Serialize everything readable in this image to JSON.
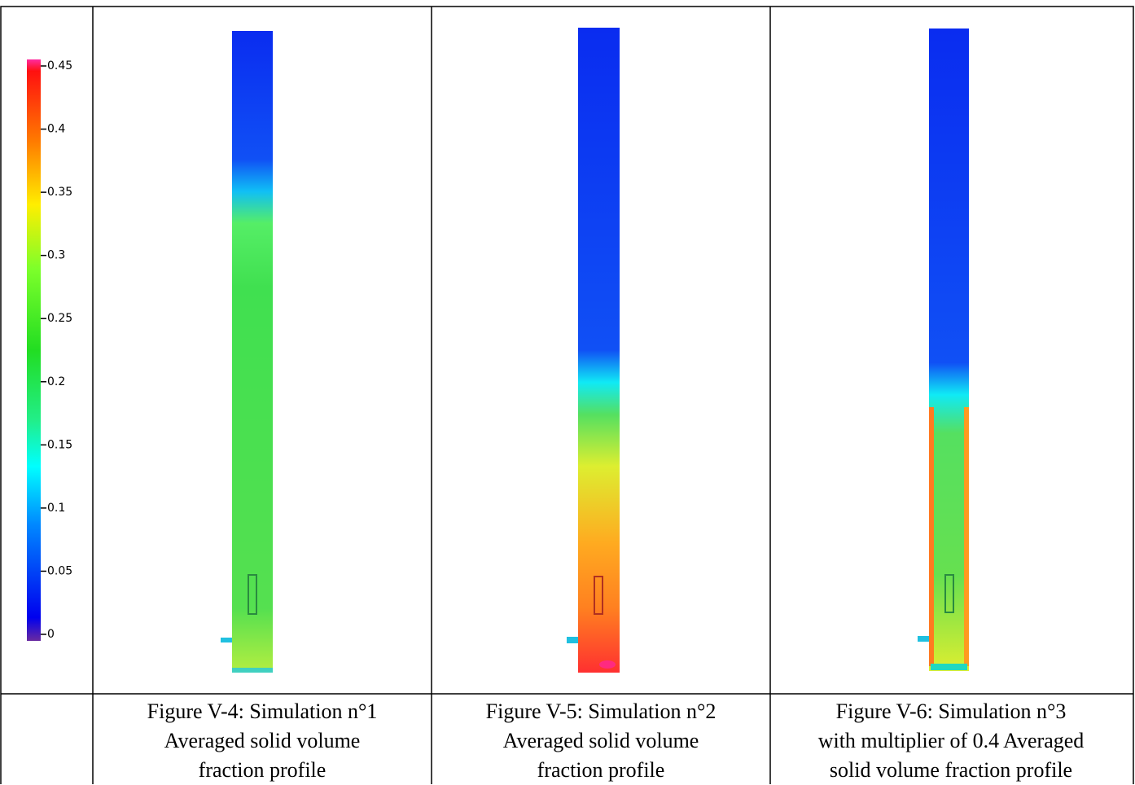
{
  "colorbar": {
    "ticks": [
      0.45,
      0.4,
      0.35,
      0.3,
      0.25,
      0.2,
      0.15,
      0.1,
      0.05,
      0
    ]
  },
  "figures": [
    {
      "caption": [
        "Figure V-4:  Simulation n°1",
        "Averaged solid volume",
        "fraction profile"
      ]
    },
    {
      "caption": [
        "Figure V-5: Simulation n°2",
        "Averaged solid volume",
        "fraction profile"
      ]
    },
    {
      "caption": [
        "Figure V-6:  Simulation n°3",
        "with multiplier of 0.4 Averaged",
        "solid volume fraction profile"
      ]
    }
  ]
}
